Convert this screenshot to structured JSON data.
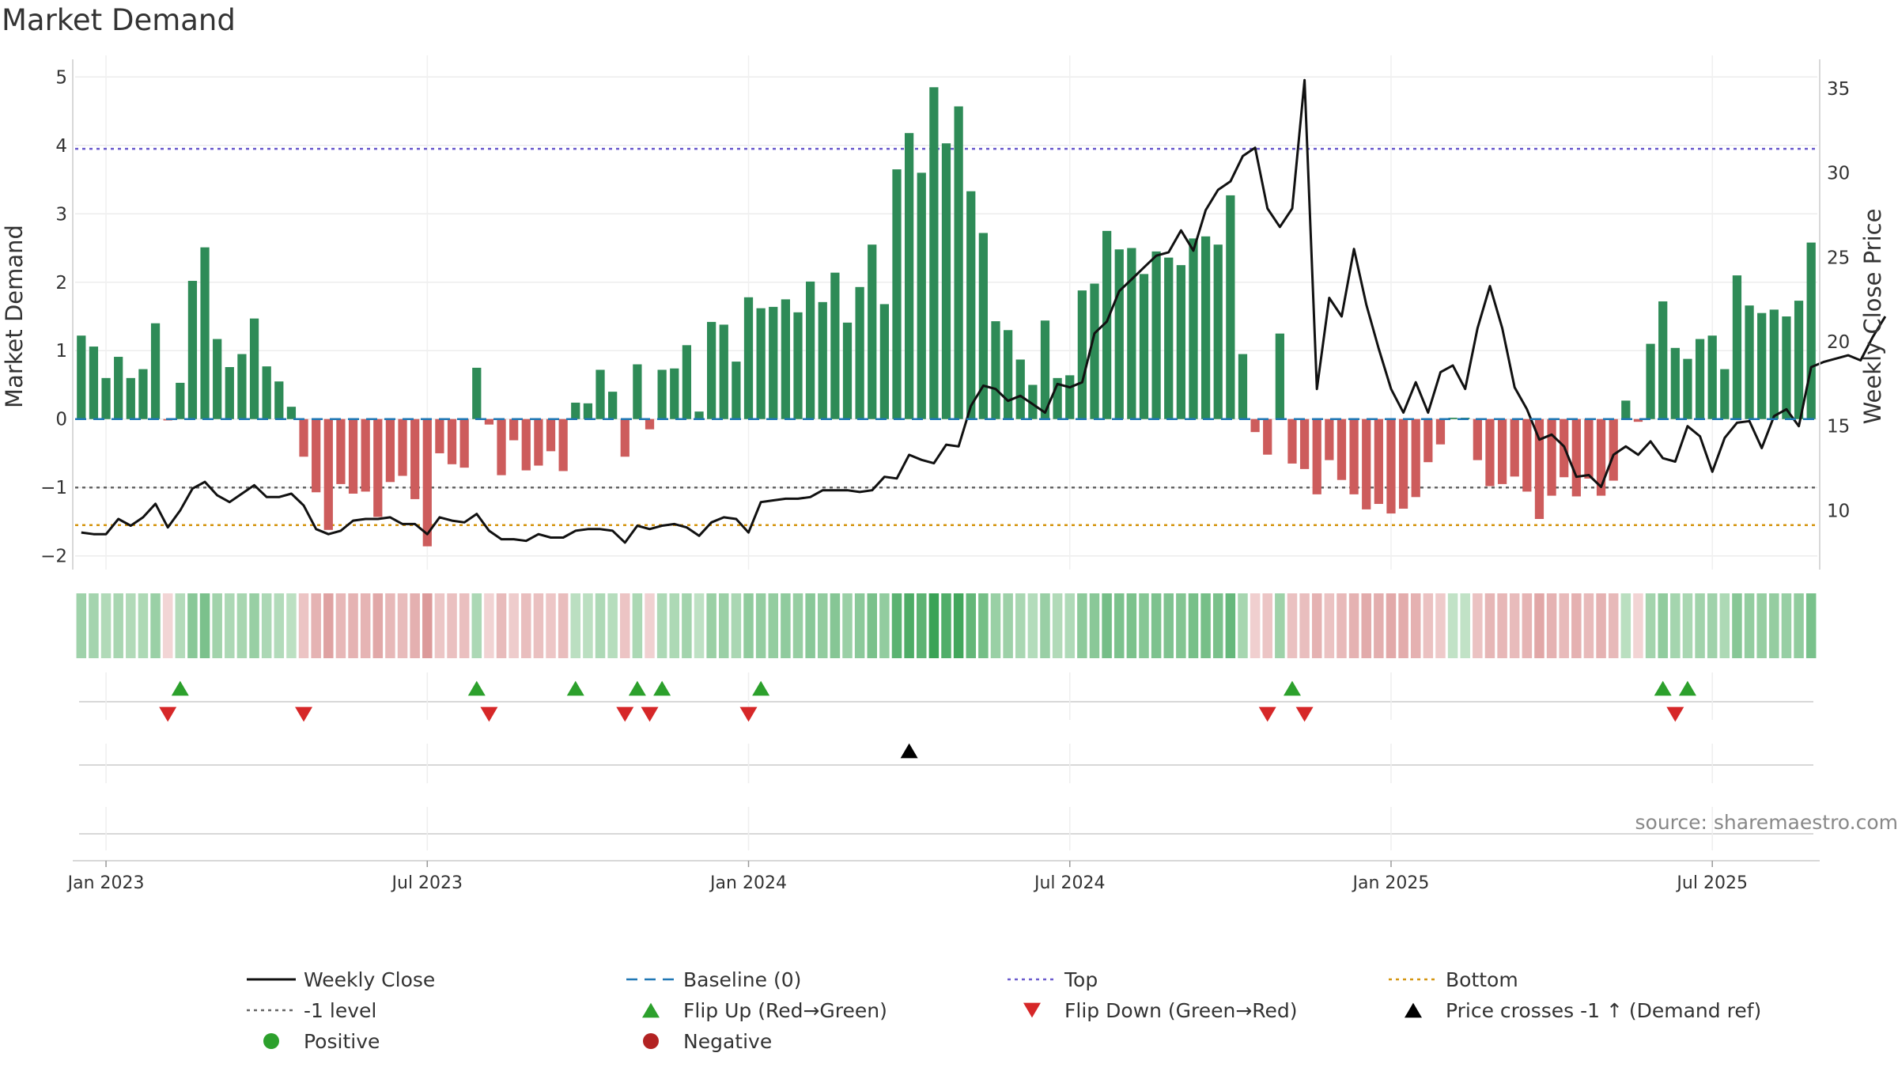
{
  "chart_data": {
    "type": "bar",
    "title": "Market Demand",
    "ylabel_left": "Market Demand",
    "ylabel_right": "Weekly Close Price",
    "ylim_left": [
      -2.2,
      5.2
    ],
    "ylim_right": [
      6.5,
      36.5
    ],
    "yticks_left": [
      -2,
      -1,
      0,
      1,
      2,
      3,
      4,
      5
    ],
    "yticks_right": [
      10,
      15,
      20,
      25,
      30,
      35
    ],
    "reference_levels": {
      "top": 3.95,
      "minus_one": -1,
      "bottom": -1.55,
      "baseline": 0
    },
    "x_tick_labels": [
      "Jan 2023",
      "Jul 2023",
      "Jan 2024",
      "Jul 2024",
      "Jan 2025",
      "Jul 2025"
    ],
    "x_tick_weeks": [
      2,
      28,
      54,
      80,
      106,
      132
    ],
    "demand": [
      1.22,
      1.06,
      0.6,
      0.91,
      0.6,
      0.73,
      1.4,
      -0.02,
      0.53,
      2.02,
      2.51,
      1.17,
      0.76,
      0.95,
      1.47,
      0.77,
      0.55,
      0.18,
      -0.55,
      -1.07,
      -1.62,
      -0.95,
      -1.09,
      -1.06,
      -1.43,
      -0.92,
      -0.83,
      -1.17,
      -1.86,
      -0.5,
      -0.66,
      -0.71,
      0.75,
      -0.08,
      -0.82,
      -0.31,
      -0.75,
      -0.68,
      -0.47,
      -0.76,
      0.24,
      0.23,
      0.72,
      0.4,
      -0.55,
      0.8,
      -0.15,
      0.72,
      0.74,
      1.08,
      0.11,
      1.42,
      1.38,
      0.84,
      1.78,
      1.62,
      1.64,
      1.75,
      1.56,
      2.01,
      1.71,
      2.14,
      1.41,
      1.93,
      2.55,
      1.68,
      3.65,
      4.18,
      3.6,
      4.85,
      4.03,
      4.57,
      3.33,
      2.72,
      1.43,
      1.3,
      0.87,
      0.5,
      1.44,
      0.6,
      0.64,
      1.88,
      1.98,
      2.75,
      2.48,
      2.5,
      2.12,
      2.45,
      2.36,
      2.25,
      2.64,
      2.67,
      2.55,
      3.27,
      0.95,
      -0.19,
      -0.52,
      1.25,
      -0.65,
      -0.73,
      -1.1,
      -0.6,
      -0.89,
      -1.1,
      -1.32,
      -1.24,
      -1.38,
      -1.31,
      -1.14,
      -0.63,
      -0.37,
      0.02,
      0.02,
      -0.6,
      -0.98,
      -0.95,
      -0.84,
      -1.06,
      -1.46,
      -1.12,
      -0.85,
      -1.13,
      -0.87,
      -1.12,
      -0.9,
      0.27,
      -0.04,
      1.1,
      1.72,
      1.04,
      0.88,
      1.17,
      1.22,
      0.73,
      2.1,
      1.66,
      1.55,
      1.6,
      1.5,
      1.73,
      2.58
    ],
    "weekly_close": [
      8.7,
      8.6,
      8.6,
      9.5,
      9.1,
      9.6,
      10.4,
      9.0,
      10.0,
      11.3,
      11.7,
      10.9,
      10.5,
      11.0,
      11.5,
      10.8,
      10.8,
      11.0,
      10.3,
      8.9,
      8.6,
      8.8,
      9.4,
      9.5,
      9.5,
      9.6,
      9.2,
      9.2,
      8.6,
      9.6,
      9.4,
      9.3,
      9.8,
      8.8,
      8.3,
      8.3,
      8.2,
      8.6,
      8.4,
      8.4,
      8.8,
      8.9,
      8.9,
      8.8,
      8.1,
      9.1,
      8.9,
      9.1,
      9.2,
      9.0,
      8.5,
      9.3,
      9.6,
      9.5,
      8.7,
      10.5,
      10.6,
      10.7,
      10.7,
      10.8,
      11.2,
      11.2,
      11.2,
      11.1,
      11.2,
      12.0,
      11.9,
      13.3,
      13.0,
      12.8,
      13.9,
      13.8,
      16.2,
      17.4,
      17.2,
      16.5,
      16.8,
      16.3,
      15.8,
      17.5,
      17.3,
      17.6,
      20.5,
      21.2,
      23.0,
      23.7,
      24.4,
      25.1,
      25.3,
      26.6,
      25.4,
      27.8,
      29.0,
      29.5,
      31.0,
      31.5,
      27.9,
      26.8,
      27.9,
      35.5,
      17.2,
      22.6,
      21.5,
      25.5,
      22.2,
      19.6,
      17.2,
      15.8,
      17.6,
      15.8,
      18.2,
      18.6,
      17.2,
      20.8,
      23.3,
      20.8,
      17.3,
      16.0,
      14.2,
      14.5,
      13.8,
      12.0,
      12.1,
      11.4,
      13.3,
      13.8,
      13.3,
      14.1,
      13.1,
      12.9,
      15.0,
      14.4,
      12.3,
      14.3,
      15.2,
      15.3,
      13.7,
      15.6,
      16.0,
      15.0,
      18.5,
      18.8,
      19.0,
      19.2,
      18.9,
      20.3,
      21.5
    ],
    "flip_up_weeks": [
      8,
      32,
      40,
      45,
      47,
      55,
      98,
      128,
      130
    ],
    "flip_down_weeks": [
      7,
      18,
      33,
      44,
      46,
      54,
      96,
      99,
      129
    ],
    "price_cross_weeks": [
      67
    ],
    "series_colors": {
      "positive": "#2e8b57",
      "negative": "#cd5c5c",
      "close": "#111111",
      "baseline": "#1f77b4",
      "top": "#6a5acd",
      "minus_one": "#666666",
      "bottom": "#d4950f",
      "flip_up": "#2ca02c",
      "flip_down": "#d62728",
      "price_cross": "#000000",
      "positive_dot": "#2ca02c",
      "negative_dot": "#b22222"
    },
    "legend": [
      "Weekly Close",
      "Baseline (0)",
      "Top",
      "Bottom",
      "-1 level",
      "Flip Up (Red→Green)",
      "Flip Down (Green→Red)",
      "Price crosses -1 ↑ (Demand ref)",
      "Positive",
      "Negative"
    ]
  },
  "source_text": "source: sharemaestro.com"
}
